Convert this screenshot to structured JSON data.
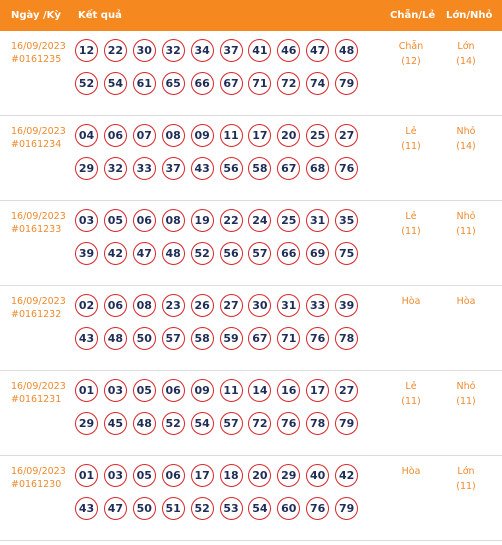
{
  "header": {
    "date_label": "Ngày /Kỳ",
    "result_label": "Kết quả",
    "chanle_label": "Chẵn/Lẻ",
    "lonnho_label": "Lớn/Nhỏ"
  },
  "colors": {
    "header_bg": "#f5891f",
    "accent_text": "#ef8a2e",
    "ball_border": "#d9262a",
    "ball_text": "#1f2d56"
  },
  "draws": [
    {
      "date": "16/09/2023",
      "ky": "#0161235",
      "numbers": [
        "12",
        "22",
        "30",
        "32",
        "34",
        "37",
        "41",
        "46",
        "47",
        "48",
        "52",
        "54",
        "61",
        "65",
        "66",
        "67",
        "71",
        "72",
        "74",
        "79"
      ],
      "chanle": "Chẵn",
      "chanle_count": "(12)",
      "lonnho": "Lớn",
      "lonnho_count": "(14)"
    },
    {
      "date": "16/09/2023",
      "ky": "#0161234",
      "numbers": [
        "04",
        "06",
        "07",
        "08",
        "09",
        "11",
        "17",
        "20",
        "25",
        "27",
        "29",
        "32",
        "33",
        "37",
        "43",
        "56",
        "58",
        "67",
        "68",
        "76"
      ],
      "chanle": "Lẻ",
      "chanle_count": "(11)",
      "lonnho": "Nhỏ",
      "lonnho_count": "(14)"
    },
    {
      "date": "16/09/2023",
      "ky": "#0161233",
      "numbers": [
        "03",
        "05",
        "06",
        "08",
        "19",
        "22",
        "24",
        "25",
        "31",
        "35",
        "39",
        "42",
        "47",
        "48",
        "52",
        "56",
        "57",
        "66",
        "69",
        "75"
      ],
      "chanle": "Lẻ",
      "chanle_count": "(11)",
      "lonnho": "Nhỏ",
      "lonnho_count": "(11)"
    },
    {
      "date": "16/09/2023",
      "ky": "#0161232",
      "numbers": [
        "02",
        "06",
        "08",
        "23",
        "26",
        "27",
        "30",
        "31",
        "33",
        "39",
        "43",
        "48",
        "50",
        "57",
        "58",
        "59",
        "67",
        "71",
        "76",
        "78"
      ],
      "chanle": "Hòa",
      "chanle_count": "",
      "lonnho": "Hòa",
      "lonnho_count": ""
    },
    {
      "date": "16/09/2023",
      "ky": "#0161231",
      "numbers": [
        "01",
        "03",
        "05",
        "06",
        "09",
        "11",
        "14",
        "16",
        "17",
        "27",
        "29",
        "45",
        "48",
        "52",
        "54",
        "57",
        "72",
        "76",
        "78",
        "79"
      ],
      "chanle": "Lẻ",
      "chanle_count": "(11)",
      "lonnho": "Nhỏ",
      "lonnho_count": "(11)"
    },
    {
      "date": "16/09/2023",
      "ky": "#0161230",
      "numbers": [
        "01",
        "03",
        "05",
        "06",
        "17",
        "18",
        "20",
        "29",
        "40",
        "42",
        "43",
        "47",
        "50",
        "51",
        "52",
        "53",
        "54",
        "60",
        "76",
        "79"
      ],
      "chanle": "Hòa",
      "chanle_count": "",
      "lonnho": "Lớn",
      "lonnho_count": "(11)"
    }
  ]
}
